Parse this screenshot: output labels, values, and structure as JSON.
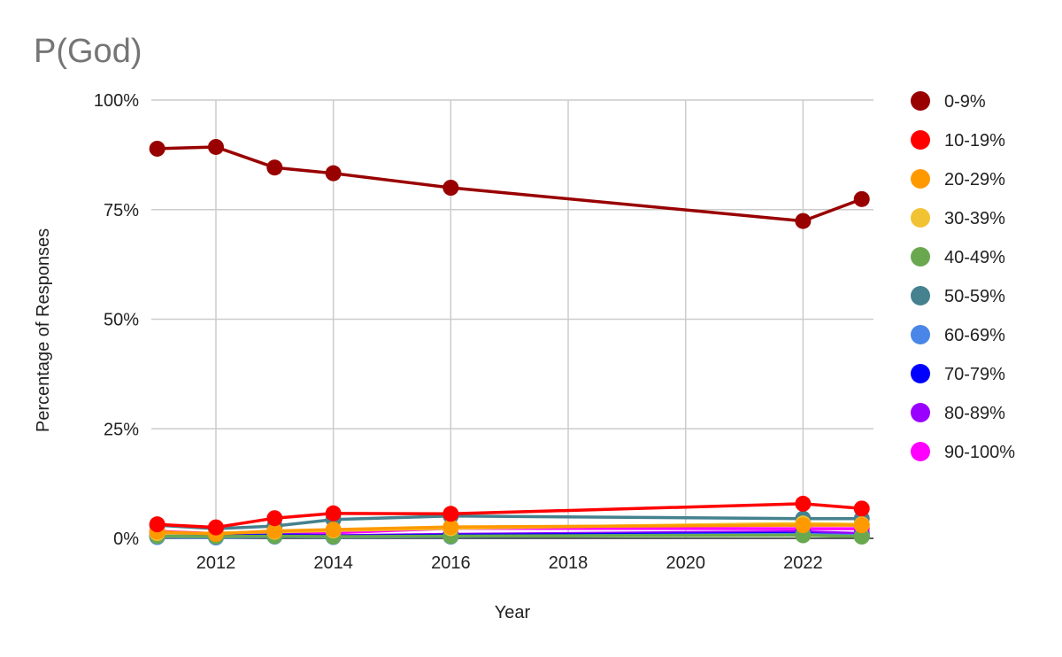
{
  "chart_data": {
    "type": "line",
    "title": "P(God)",
    "xlabel": "Year",
    "ylabel": "Percentage of Responses",
    "x": [
      2011,
      2012,
      2013,
      2014,
      2016,
      2022,
      2023
    ],
    "x_ticks": [
      "2012",
      "2014",
      "2016",
      "2018",
      "2020",
      "2022"
    ],
    "x_tick_values": [
      2012,
      2014,
      2016,
      2018,
      2020,
      2022
    ],
    "xlim": [
      2010.9,
      2023.2
    ],
    "y_ticks": [
      "0%",
      "25%",
      "50%",
      "75%",
      "100%"
    ],
    "y_tick_values": [
      0,
      25,
      50,
      75,
      100
    ],
    "ylim": [
      0,
      100
    ],
    "grid": true,
    "legend_position": "right",
    "series": [
      {
        "name": "0-9%",
        "color": "#990000",
        "values": [
          88.9,
          89.3,
          84.6,
          83.3,
          80.0,
          72.4,
          77.4
        ]
      },
      {
        "name": "10-19%",
        "color": "#ff0000",
        "values": [
          3.2,
          2.5,
          4.6,
          5.7,
          5.6,
          7.9,
          6.8
        ]
      },
      {
        "name": "20-29%",
        "color": "#ff9900",
        "values": [
          1.5,
          1.0,
          1.7,
          2.0,
          2.6,
          3.0,
          3.0
        ]
      },
      {
        "name": "30-39%",
        "color": "#f1c232",
        "values": [
          1.2,
          1.2,
          1.5,
          1.8,
          2.3,
          3.4,
          3.2
        ]
      },
      {
        "name": "40-49%",
        "color": "#6aa84f",
        "values": [
          0.5,
          0.4,
          0.5,
          0.4,
          0.5,
          0.7,
          0.4
        ]
      },
      {
        "name": "50-59%",
        "color": "#45818e",
        "values": [
          3.0,
          2.2,
          2.8,
          4.3,
          5.1,
          4.5,
          4.5
        ]
      },
      {
        "name": "60-69%",
        "color": "#4a86e8",
        "values": [
          0.3,
          0.2,
          0.4,
          0.3,
          0.4,
          0.9,
          0.6
        ]
      },
      {
        "name": "70-79%",
        "color": "#0000ff",
        "values": [
          0.5,
          0.5,
          0.7,
          0.5,
          0.7,
          1.1,
          0.5
        ]
      },
      {
        "name": "80-89%",
        "color": "#9900ff",
        "values": [
          0.8,
          0.6,
          1.0,
          0.6,
          0.9,
          1.5,
          1.1
        ]
      },
      {
        "name": "90-100%",
        "color": "#ff00ff",
        "values": [
          1.6,
          1.1,
          1.6,
          1.3,
          2.3,
          2.2,
          2.2
        ]
      }
    ]
  }
}
